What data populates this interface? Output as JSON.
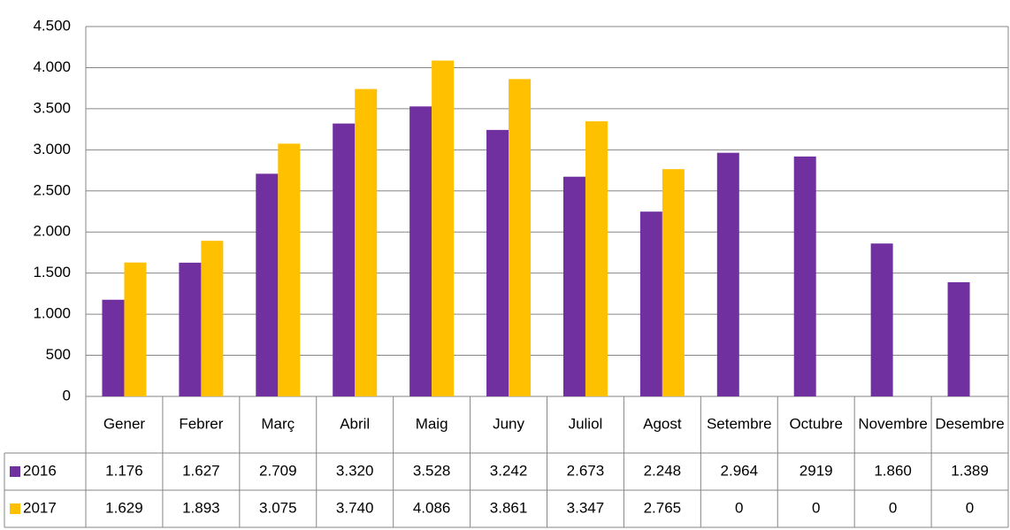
{
  "chart_data": {
    "type": "bar",
    "categories": [
      "Gener",
      "Febrer",
      "Març",
      "Abril",
      "Maig",
      "Juny",
      "Juliol",
      "Agost",
      "Setembre",
      "Octubre",
      "Novembre",
      "Desembre"
    ],
    "series": [
      {
        "name": "2016",
        "color": "#7030a0",
        "values": [
          1176,
          1627,
          2709,
          3320,
          3528,
          3242,
          2673,
          2248,
          2964,
          2919,
          1860,
          1389
        ],
        "value_labels": [
          "1.176",
          "1.627",
          "2.709",
          "3.320",
          "3.528",
          "3.242",
          "2.673",
          "2.248",
          "2.964",
          "2919",
          "1.860",
          "1.389"
        ]
      },
      {
        "name": "2017",
        "color": "#ffc000",
        "values": [
          1629,
          1893,
          3075,
          3740,
          4086,
          3861,
          3347,
          2765,
          0,
          0,
          0,
          0
        ],
        "value_labels": [
          "1.629",
          "1.893",
          "3.075",
          "3.740",
          "4.086",
          "3.861",
          "3.347",
          "2.765",
          "0",
          "0",
          "0",
          "0"
        ]
      }
    ],
    "ylim": [
      0,
      4500
    ],
    "yticks": [
      0,
      500,
      {
        "value": 1000,
        "label": "1.000"
      },
      {
        "value": 1500,
        "label": "1.500"
      },
      {
        "value": 2000,
        "label": "2.000"
      },
      {
        "value": 2500,
        "label": "2.500"
      },
      {
        "value": 3000,
        "label": "3.000"
      },
      {
        "value": 3500,
        "label": "3.500"
      },
      {
        "value": 4000,
        "label": "4.000"
      },
      {
        "value": 4500,
        "label": "4.500"
      }
    ],
    "grid": true
  }
}
